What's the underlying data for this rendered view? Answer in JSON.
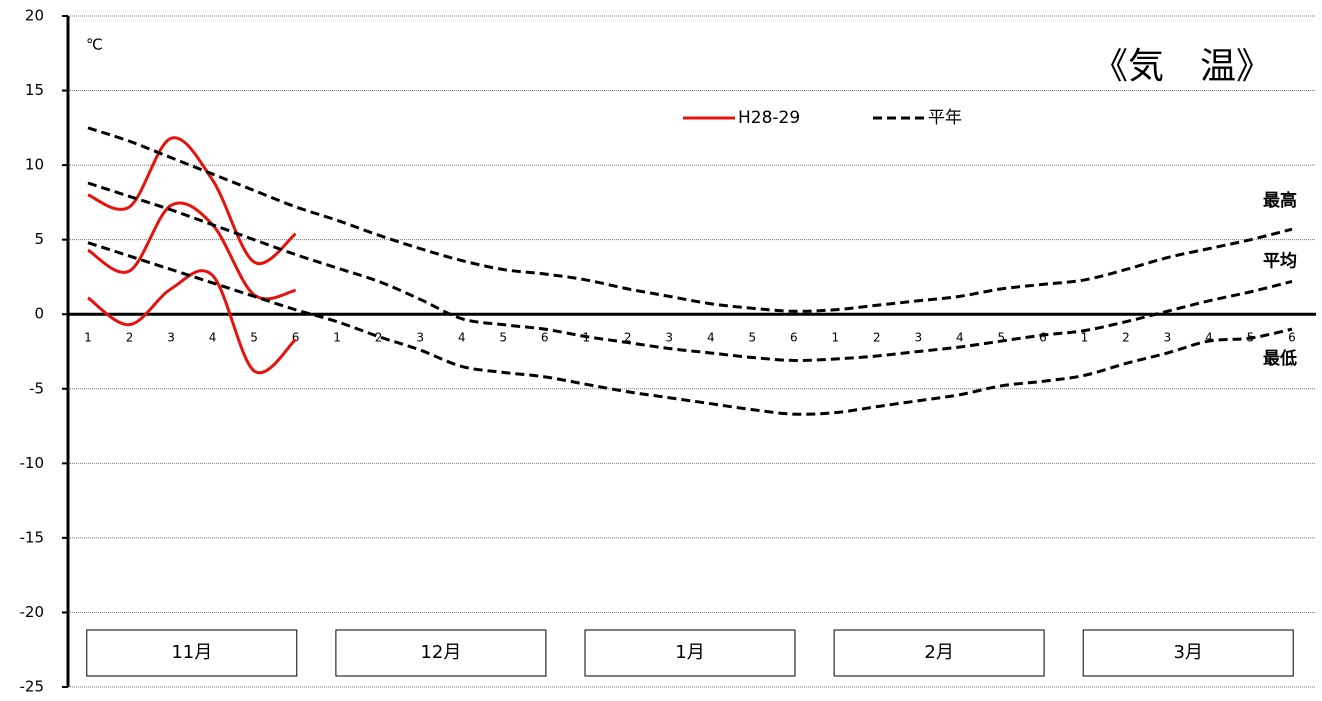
{
  "chart_data": {
    "type": "line",
    "title": "《気　温》",
    "y_unit": "℃",
    "categories": [
      "1",
      "2",
      "3",
      "4",
      "5",
      "6",
      "1",
      "2",
      "3",
      "4",
      "5",
      "6",
      "1",
      "2",
      "3",
      "4",
      "5",
      "6",
      "1",
      "2",
      "3",
      "4",
      "5",
      "6",
      "1",
      "2",
      "3",
      "4",
      "5",
      "6"
    ],
    "months": [
      "11月",
      "12月",
      "1月",
      "2月",
      "3月"
    ],
    "line_labels": [
      "最高",
      "平均",
      "最低"
    ],
    "ylim": [
      -25,
      20
    ],
    "yticks": [
      -25,
      -20,
      -15,
      -10,
      -5,
      0,
      5,
      10,
      15,
      20
    ],
    "grid": true,
    "series": [
      {
        "name": "H28-29",
        "color": "#e8120c",
        "dashed": false,
        "values": [
          8.0,
          7.2,
          11.8,
          9.0,
          3.5,
          5.4,
          null,
          null,
          null,
          null,
          null,
          null,
          null,
          null,
          null,
          null,
          null,
          null,
          null,
          null,
          null,
          null,
          null,
          null,
          null,
          null,
          null,
          null,
          null,
          null
        ]
      },
      {
        "name": "H28-29",
        "color": "#e8120c",
        "dashed": false,
        "values": [
          4.3,
          2.9,
          7.3,
          6.0,
          1.3,
          1.6,
          null,
          null,
          null,
          null,
          null,
          null,
          null,
          null,
          null,
          null,
          null,
          null,
          null,
          null,
          null,
          null,
          null,
          null,
          null,
          null,
          null,
          null,
          null,
          null
        ]
      },
      {
        "name": "H28-29",
        "color": "#e8120c",
        "dashed": false,
        "values": [
          1.1,
          -0.7,
          1.7,
          2.6,
          -3.8,
          -1.7,
          null,
          null,
          null,
          null,
          null,
          null,
          null,
          null,
          null,
          null,
          null,
          null,
          null,
          null,
          null,
          null,
          null,
          null,
          null,
          null,
          null,
          null,
          null,
          null
        ]
      },
      {
        "name": "平年",
        "color": "#000000",
        "dashed": true,
        "values": [
          12.5,
          11.6,
          10.5,
          9.4,
          8.3,
          7.2,
          6.3,
          5.3,
          4.4,
          3.6,
          3.0,
          2.7,
          2.3,
          1.7,
          1.2,
          0.7,
          0.4,
          0.2,
          0.3,
          0.6,
          0.9,
          1.2,
          1.7,
          2.0,
          2.3,
          3.0,
          3.8,
          4.4,
          5.0,
          5.7
        ]
      },
      {
        "name": "平年",
        "color": "#000000",
        "dashed": true,
        "values": [
          8.8,
          7.9,
          7.0,
          6.0,
          5.0,
          4.0,
          3.1,
          2.2,
          1.0,
          -0.3,
          -0.7,
          -1.0,
          -1.5,
          -1.9,
          -2.3,
          -2.6,
          -2.9,
          -3.1,
          -3.0,
          -2.8,
          -2.5,
          -2.2,
          -1.8,
          -1.4,
          -1.1,
          -0.5,
          0.2,
          0.9,
          1.5,
          2.2
        ]
      },
      {
        "name": "平年",
        "color": "#000000",
        "dashed": true,
        "values": [
          4.8,
          3.9,
          3.0,
          2.1,
          1.2,
          0.3,
          -0.5,
          -1.5,
          -2.4,
          -3.5,
          -3.9,
          -4.2,
          -4.7,
          -5.2,
          -5.6,
          -6.0,
          -6.4,
          -6.7,
          -6.6,
          -6.2,
          -5.8,
          -5.4,
          -4.8,
          -4.5,
          -4.1,
          -3.3,
          -2.6,
          -1.8,
          -1.6,
          -1.0
        ]
      }
    ]
  }
}
